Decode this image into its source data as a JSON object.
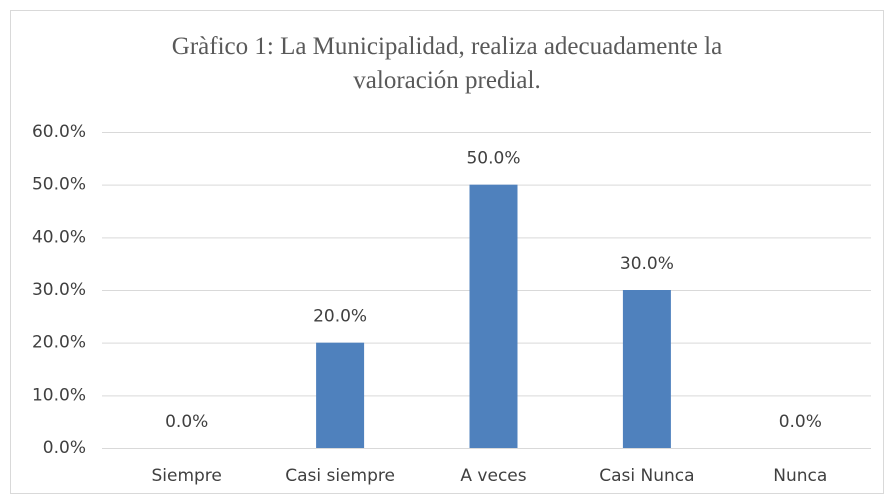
{
  "chart_data": {
    "type": "bar",
    "title": "Gràfico 1: La Municipalidad, realiza adecuadamente la valoración predial.",
    "categories": [
      "Siempre",
      "Casi siempre",
      "A veces",
      "Casi Nunca",
      "Nunca"
    ],
    "values": [
      0,
      20,
      50,
      30,
      0
    ],
    "value_labels": [
      "0.0%",
      "20.0%",
      "50.0%",
      "30.0%",
      "0.0%"
    ],
    "color": "#4f81bd",
    "ylim": [
      0,
      60
    ],
    "yticks": [
      {
        "value": 0,
        "label": "0.0%"
      },
      {
        "value": 10,
        "label": "10.0%"
      },
      {
        "value": 20,
        "label": "20.0%"
      },
      {
        "value": 30,
        "label": "30.0%"
      },
      {
        "value": 40,
        "label": "40.0%"
      },
      {
        "value": 50,
        "label": "50.0%"
      },
      {
        "value": 60,
        "label": "60.0%"
      }
    ],
    "grid": true
  }
}
